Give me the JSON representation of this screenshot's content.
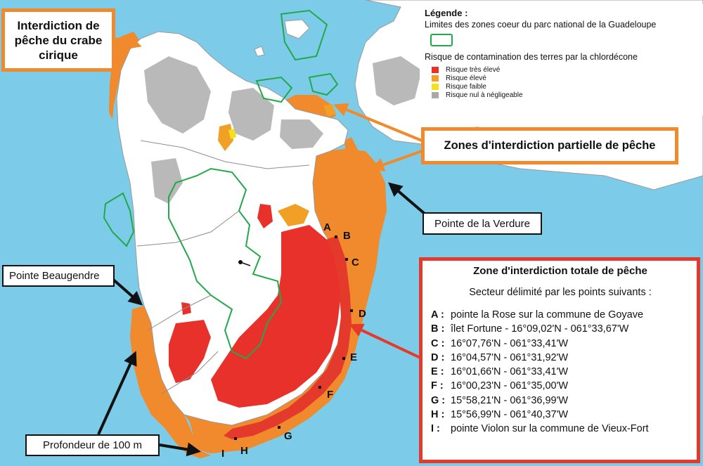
{
  "boxes": {
    "crabe": "Interdiction de pêche du crabe cirique",
    "partielle": "Zones d'interdiction partielle de pêche",
    "verdure": "Pointe de la Verdure",
    "beaugendre": "Pointe Beaugendre",
    "profondeur": "Profondeur de 100 m"
  },
  "legend": {
    "title": "Légende :",
    "park_limits": "Limites des zones coeur du parc national de la Guadeloupe",
    "contamination_title": "Risque de contamination des terres par la chlordécone",
    "items": [
      {
        "label": "Risque très élevé",
        "color": "#e8312a"
      },
      {
        "label": "Risque élevé",
        "color": "#f0a024"
      },
      {
        "label": "Risque faible",
        "color": "#f5e01c"
      },
      {
        "label": "Risque nul à négligeable",
        "color": "#a9a9a9"
      }
    ],
    "park_color": "#22a94b"
  },
  "totale": {
    "title": "Zone d'interdiction totale de pêche",
    "subtitle": "Secteur délimité par les points suivants :",
    "points": [
      {
        "key": "A :",
        "text": "pointe la Rose sur la commune de Goyave"
      },
      {
        "key": "B :",
        "text": "îlet Fortune - 16°09,02'N - 061°33,67'W"
      },
      {
        "key": "C :",
        "text": "16°07,76'N - 061°33,41'W"
      },
      {
        "key": "D :",
        "text": "16°04,57'N - 061°31,92'W"
      },
      {
        "key": "E :",
        "text": "16°01,66'N - 061°33,41'W"
      },
      {
        "key": "F :",
        "text": "16°00,23'N - 061°35,00'W"
      },
      {
        "key": "G :",
        "text": "15°58,21'N - 061°36,99'W"
      },
      {
        "key": "H :",
        "text": "15°56,99'N - 061°40,37'W"
      },
      {
        "key": "I :",
        "text": "pointe Violon sur la commune de Vieux-Fort"
      }
    ]
  },
  "map_labels": {
    "A": "A",
    "B": "B",
    "C": "C",
    "D": "D",
    "E": "E",
    "F": "F",
    "G": "G",
    "H": "H",
    "I": "I"
  },
  "colors": {
    "sea": "#7ccbe8",
    "land": "#ffffff",
    "orange_zone": "#f08a2c",
    "red_zone": "#e33a2c"
  }
}
